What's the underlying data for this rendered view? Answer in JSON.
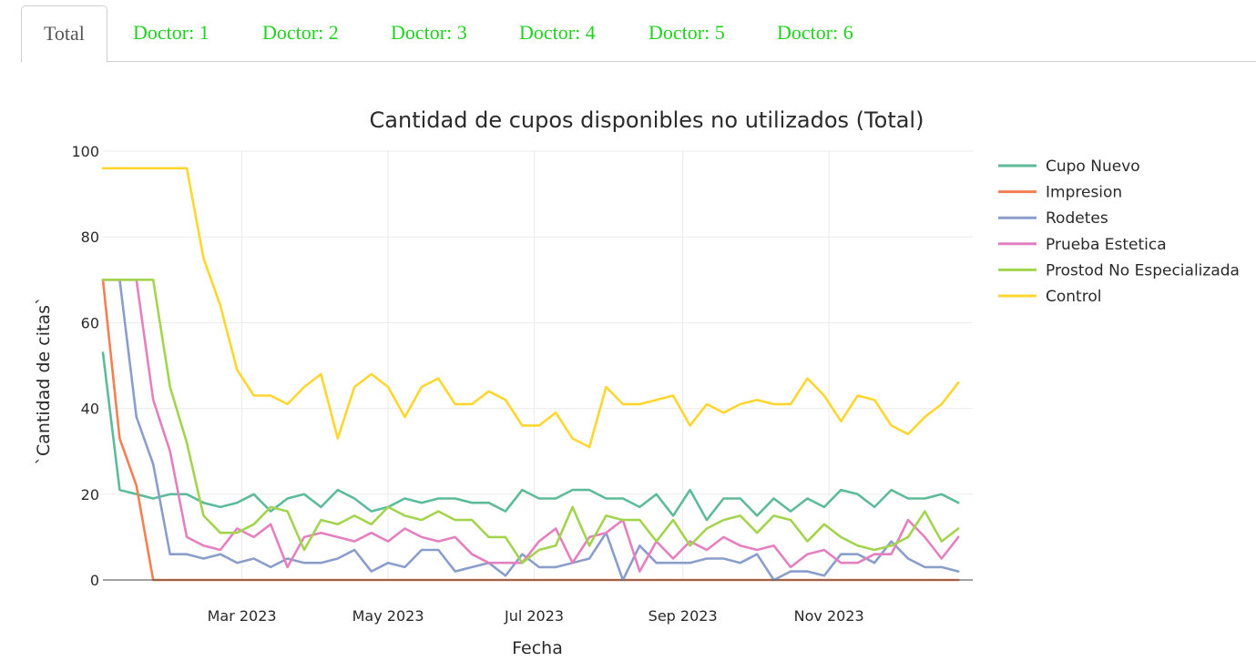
{
  "tabs": [
    {
      "label": "Total",
      "active": true
    },
    {
      "label": "Doctor: 1",
      "active": false
    },
    {
      "label": "Doctor: 2",
      "active": false
    },
    {
      "label": "Doctor: 3",
      "active": false
    },
    {
      "label": "Doctor: 4",
      "active": false
    },
    {
      "label": "Doctor: 5",
      "active": false
    },
    {
      "label": "Doctor: 6",
      "active": false
    }
  ],
  "colors": {
    "tab_active_text": "#555555",
    "tab_inactive_text": "#1ed21e",
    "grid": "#ebebeb",
    "text": "#2a2a2a"
  },
  "chart_data": {
    "type": "line",
    "title": "Cantidad de cupos disponibles no utilizados (Total)",
    "xlabel": "Fecha",
    "ylabel": "`Cantidad de citas`",
    "x_start": "2023-01-02",
    "x_end": "2023-12-31",
    "x_step_days": 7,
    "x_ticks": [
      {
        "date": "2023-03-01",
        "label": "Mar 2023"
      },
      {
        "date": "2023-05-01",
        "label": "May 2023"
      },
      {
        "date": "2023-07-01",
        "label": "Jul 2023"
      },
      {
        "date": "2023-09-01",
        "label": "Sep 2023"
      },
      {
        "date": "2023-11-01",
        "label": "Nov 2023"
      }
    ],
    "ylim": [
      0,
      100
    ],
    "y_ticks": [
      0,
      20,
      40,
      60,
      80,
      100
    ],
    "grid": true,
    "legend_position": "right",
    "series": [
      {
        "name": "Cupo Nuevo",
        "color": "#5dbb9a",
        "values": [
          53,
          21,
          20,
          19,
          20,
          20,
          18,
          17,
          18,
          20,
          16,
          19,
          20,
          17,
          21,
          19,
          16,
          17,
          19,
          18,
          19,
          19,
          18,
          18,
          16,
          21,
          19,
          19,
          21,
          21,
          19,
          19,
          17,
          20,
          15,
          21,
          14,
          19,
          19,
          15,
          19,
          16,
          19,
          17,
          21,
          20,
          17,
          21,
          19,
          19,
          20,
          18
        ]
      },
      {
        "name": "Impresion",
        "color": "#f47f52",
        "values": [
          70,
          33,
          22,
          0,
          0,
          0,
          0,
          0,
          0,
          0,
          0,
          0,
          0,
          0,
          0,
          0,
          0,
          0,
          0,
          0,
          0,
          0,
          0,
          0,
          0,
          0,
          0,
          0,
          0,
          0,
          0,
          0,
          0,
          0,
          0,
          0,
          0,
          0,
          0,
          0,
          0,
          0,
          0,
          0,
          0,
          0,
          0,
          0,
          0,
          0,
          0,
          0
        ]
      },
      {
        "name": "Rodetes",
        "color": "#8a9ecb",
        "values": [
          70,
          70,
          38,
          27,
          6,
          6,
          5,
          6,
          4,
          5,
          3,
          5,
          4,
          4,
          5,
          7,
          2,
          4,
          3,
          7,
          7,
          2,
          3,
          4,
          1,
          6,
          3,
          3,
          4,
          5,
          11,
          0,
          8,
          4,
          4,
          4,
          5,
          5,
          4,
          6,
          0,
          2,
          2,
          1,
          6,
          6,
          4,
          9,
          5,
          3,
          3,
          2
        ]
      },
      {
        "name": "Prueba Estetica",
        "color": "#e480bf",
        "values": [
          70,
          70,
          70,
          42,
          30,
          10,
          8,
          7,
          12,
          10,
          13,
          3,
          10,
          11,
          10,
          9,
          11,
          9,
          12,
          10,
          9,
          10,
          6,
          4,
          4,
          4,
          9,
          12,
          4,
          10,
          11,
          14,
          2,
          9,
          5,
          9,
          7,
          10,
          8,
          7,
          8,
          3,
          6,
          7,
          4,
          4,
          6,
          6,
          14,
          10,
          5,
          10
        ]
      },
      {
        "name": "Prostod No Especializada",
        "color": "#a3d44e",
        "values": [
          70,
          70,
          70,
          70,
          45,
          32,
          15,
          11,
          11,
          13,
          17,
          16,
          7,
          14,
          13,
          15,
          13,
          17,
          15,
          14,
          16,
          14,
          14,
          10,
          10,
          4,
          7,
          8,
          17,
          8,
          15,
          14,
          14,
          9,
          14,
          8,
          12,
          14,
          15,
          11,
          15,
          14,
          9,
          13,
          10,
          8,
          7,
          8,
          10,
          16,
          9,
          12
        ]
      },
      {
        "name": "Control",
        "color": "#fed62f",
        "values": [
          96,
          96,
          96,
          96,
          96,
          96,
          75,
          64,
          49,
          43,
          43,
          41,
          45,
          48,
          33,
          45,
          48,
          45,
          38,
          45,
          47,
          41,
          41,
          44,
          42,
          36,
          36,
          39,
          33,
          31,
          45,
          41,
          41,
          42,
          43,
          36,
          41,
          39,
          41,
          42,
          41,
          41,
          47,
          43,
          37,
          43,
          42,
          36,
          34,
          38,
          41,
          46
        ]
      }
    ]
  }
}
